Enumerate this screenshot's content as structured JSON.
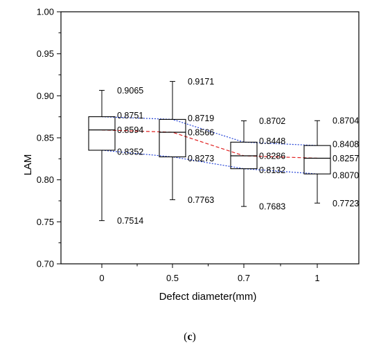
{
  "chart_data": {
    "type": "box",
    "xlabel": "Defect diameter(mm)",
    "ylabel": "LAM",
    "ylim": [
      0.7,
      1.0
    ],
    "yticks": [
      "0.70",
      "0.75",
      "0.80",
      "0.85",
      "0.90",
      "0.95",
      "1.00"
    ],
    "categories": [
      "0",
      "0.5",
      "0.7",
      "1"
    ],
    "boxes": [
      {
        "label": "0",
        "max": 0.9065,
        "q3": 0.8751,
        "median": 0.8594,
        "q1": 0.8352,
        "min": 0.7514,
        "labels": {
          "max": "0.9065",
          "q3": "0.8751",
          "median": "0.8594",
          "q1": "0.8352",
          "min": "0.7514"
        }
      },
      {
        "label": "0.5",
        "max": 0.9171,
        "q3": 0.8719,
        "median": 0.8566,
        "q1": 0.8273,
        "min": 0.7763,
        "labels": {
          "max": "0.9171",
          "q3": "0.8719",
          "median": "0.8566",
          "q1": "0.8273",
          "min": "0.7763"
        }
      },
      {
        "label": "0.7",
        "max": 0.8702,
        "q3": 0.8448,
        "median": 0.8286,
        "q1": 0.8132,
        "min": 0.7683,
        "labels": {
          "max": "0.8702",
          "q3": "0.8448",
          "median": "0.8286",
          "q1": "0.8132",
          "min": "0.7683"
        }
      },
      {
        "label": "1",
        "max": 0.8704,
        "q3": 0.8408,
        "median": 0.8257,
        "q1": 0.807,
        "min": 0.7723,
        "labels": {
          "max": "0.8704",
          "q3": "0.8408",
          "median": "0.8257",
          "q1": "0.8070",
          "min": "0.7723"
        }
      }
    ],
    "trend_lines": [
      {
        "connects": "q3",
        "color": "#1f3fd6",
        "style": "dotted"
      },
      {
        "connects": "median",
        "color": "#e02020",
        "style": "dashed"
      },
      {
        "connects": "q1",
        "color": "#1f3fd6",
        "style": "dotted"
      }
    ],
    "grid": false,
    "legend": "none"
  },
  "caption": {
    "open": "(",
    "letter": "c",
    "close": ")"
  }
}
